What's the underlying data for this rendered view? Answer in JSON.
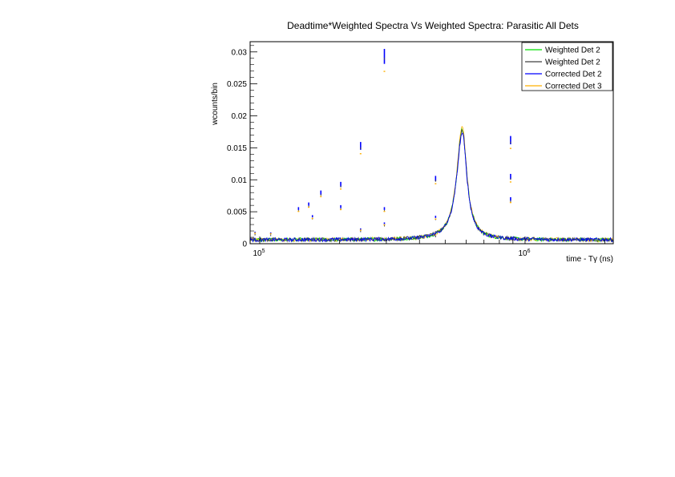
{
  "chart_data": {
    "type": "line",
    "title": "Deadtime*Weighted Spectra Vs Weighted Spectra: Parasitic All Dets",
    "xlabel": "time - Tγ (ns)",
    "ylabel": "wcounts/bin",
    "x_scale": "log",
    "xlim": [
      92000,
      2150000
    ],
    "ylim": [
      0,
      0.0316
    ],
    "grid": false,
    "legend_position": "top-right",
    "x_ticks": [
      {
        "value": 100000,
        "label": "10",
        "exp": "5"
      },
      {
        "value": 1000000,
        "label": "10",
        "exp": "6"
      }
    ],
    "y_ticks": [
      {
        "value": 0,
        "label": "0"
      },
      {
        "value": 0.005,
        "label": "0.005"
      },
      {
        "value": 0.01,
        "label": "0.01"
      },
      {
        "value": 0.015,
        "label": "0.015"
      },
      {
        "value": 0.02,
        "label": "0.02"
      },
      {
        "value": 0.025,
        "label": "0.025"
      },
      {
        "value": 0.03,
        "label": "0.03"
      }
    ],
    "baseline": 0.0006,
    "resonance_peak": {
      "center": 580000,
      "height": 0.0172
    },
    "spikes": [
      {
        "x": 96000,
        "y": 0.0018
      },
      {
        "x": 110000,
        "y": 0.0017
      },
      {
        "x": 140000,
        "y": 0.0055
      },
      {
        "x": 153000,
        "y": 0.0062
      },
      {
        "x": 158000,
        "y": 0.0043
      },
      {
        "x": 170000,
        "y": 0.008
      },
      {
        "x": 202000,
        "y": 0.0093
      },
      {
        "x": 202000,
        "y": 0.0058
      },
      {
        "x": 240000,
        "y": 0.0153
      },
      {
        "x": 240000,
        "y": 0.0023
      },
      {
        "x": 295000,
        "y": 0.0293
      },
      {
        "x": 295000,
        "y": 0.0055
      },
      {
        "x": 295000,
        "y": 0.0032
      },
      {
        "x": 460000,
        "y": 0.0102
      },
      {
        "x": 460000,
        "y": 0.0042
      },
      {
        "x": 460000,
        "y": 0.0015
      },
      {
        "x": 882000,
        "y": 0.0162
      },
      {
        "x": 882000,
        "y": 0.0105
      },
      {
        "x": 882000,
        "y": 0.007
      }
    ],
    "series": [
      {
        "name": "Weighted Det 2",
        "color": "#00e000"
      },
      {
        "name": "Weighted Det 2",
        "color": "#404040"
      },
      {
        "name": "Corrected Det 2",
        "color": "#0000ff"
      },
      {
        "name": "Corrected Det 3",
        "color": "#ffb000"
      }
    ]
  }
}
